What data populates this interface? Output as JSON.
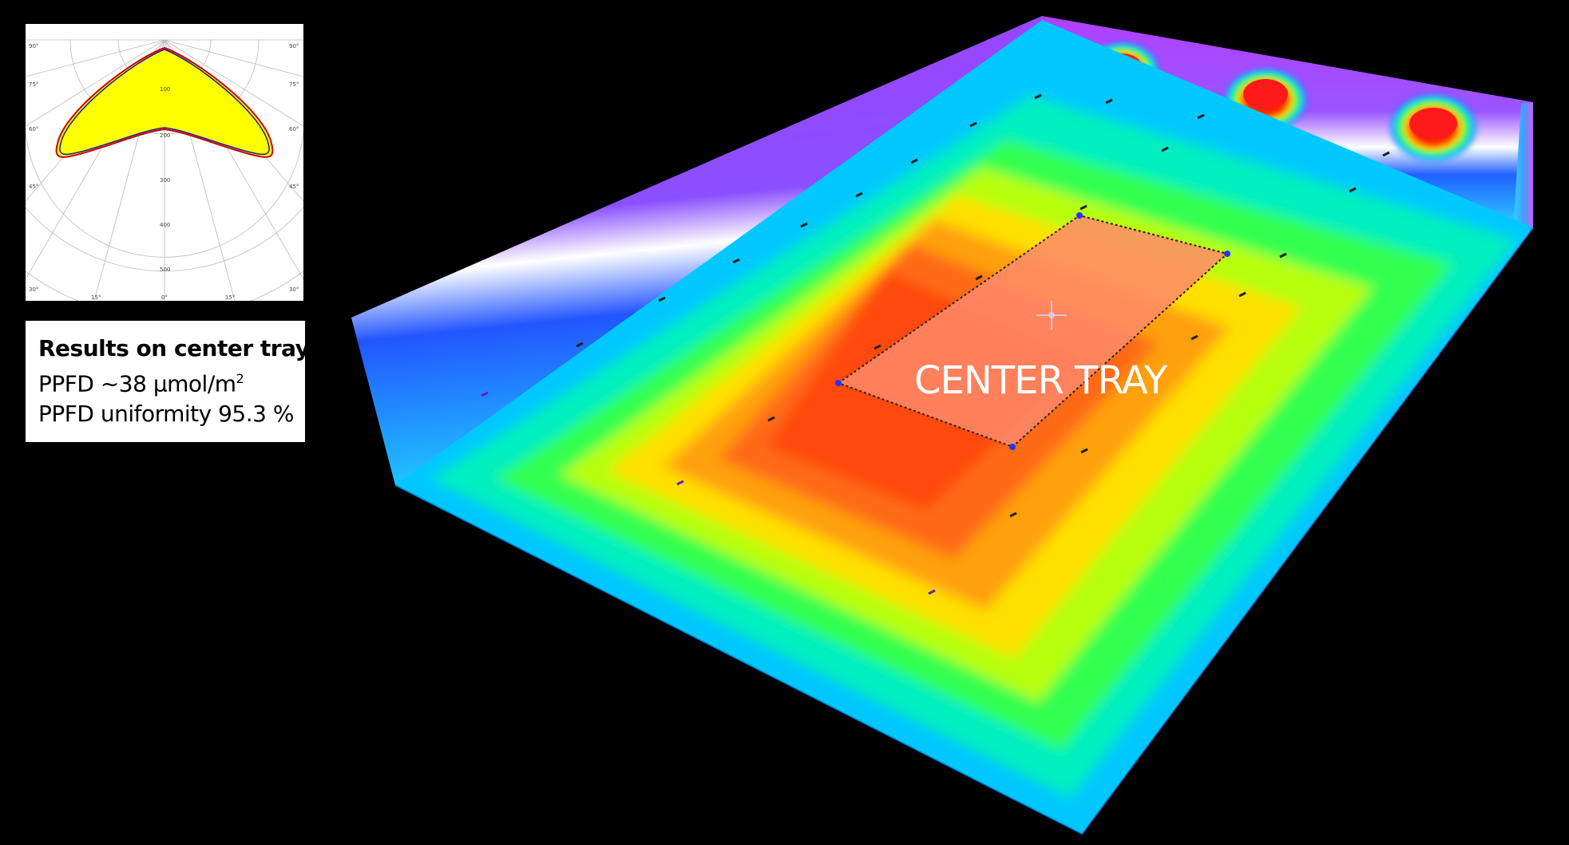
{
  "scene": {
    "tray_label": "CENTER TRAY"
  },
  "results": {
    "title": "Results on center tray:",
    "ppfd_prefix": "PPFD ~38 µmol/m",
    "ppfd_superscript": "2",
    "uniformity": "PPFD uniformity 95.3 %"
  },
  "polar_chart": {
    "angle_labels": [
      "90°",
      "75°",
      "60°",
      "45°",
      "30°",
      "15°",
      "0°",
      "15°",
      "30°",
      "45°",
      "60°",
      "75°",
      "90°"
    ],
    "radial_labels": [
      "100",
      "200",
      "300",
      "400",
      "500"
    ],
    "curve_colors": {
      "fill": "#ffff00",
      "c0_180": "#cc0000",
      "c90_270": "#1a1aaa"
    }
  },
  "colors": {
    "background": "#000000",
    "heatmap_high": "#ff3300",
    "heatmap_mid": "#ffdd00",
    "heatmap_low": "#00ff66",
    "wall": "#9b30ff"
  }
}
